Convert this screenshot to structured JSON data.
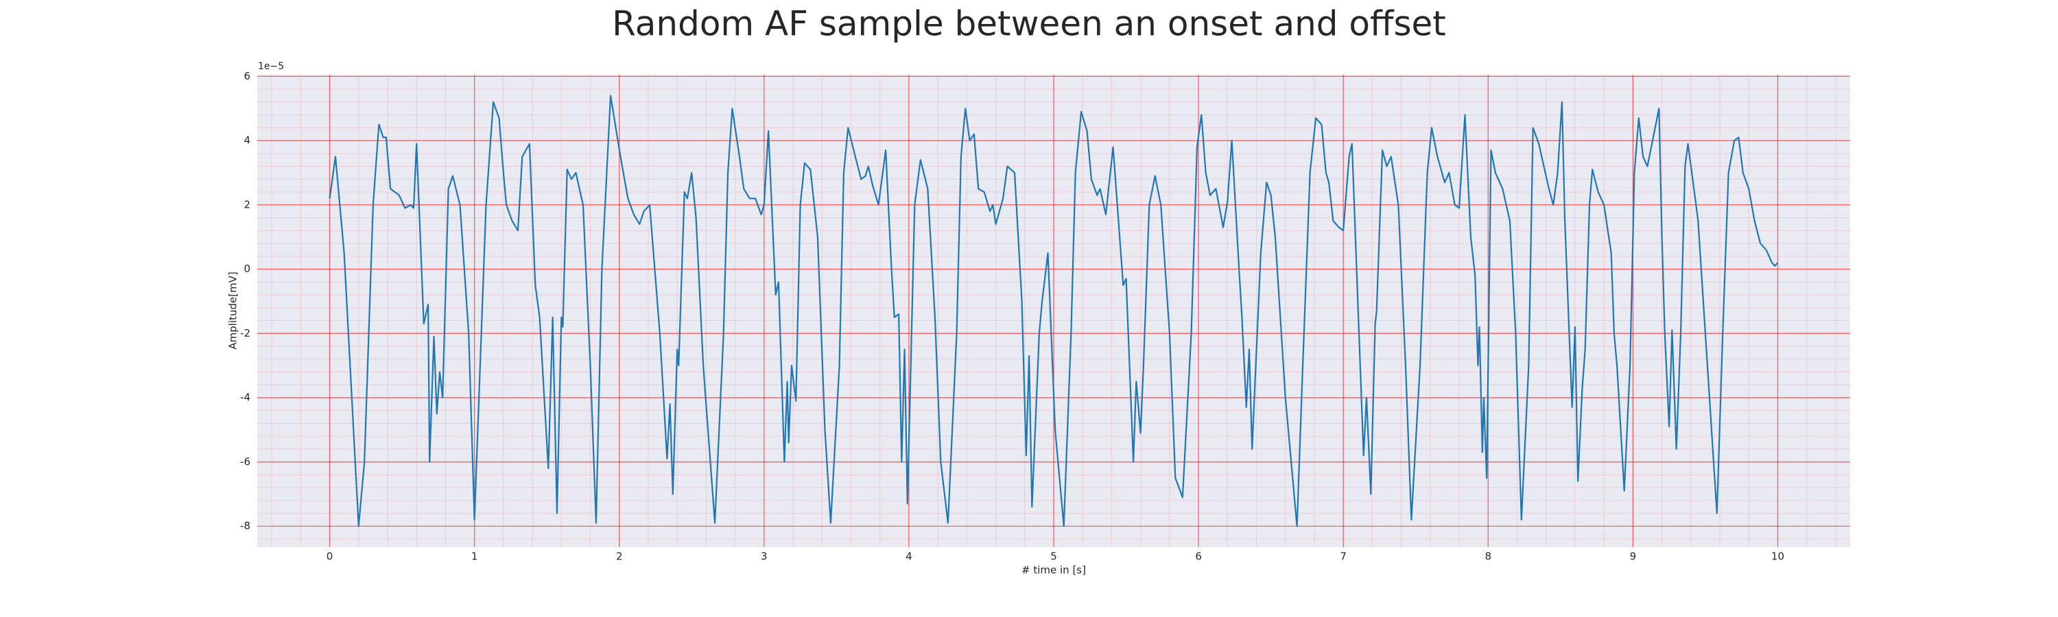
{
  "chart_data": {
    "type": "line",
    "title": "Random AF sample between an onset and offset",
    "x_label": "# time in [s]",
    "y_label": "Amplitude[mV]",
    "y_offset_label": "1e−5",
    "color": "#1f77b4",
    "background": "#eaeaf2",
    "grid": true,
    "grid_color": "#ff0000",
    "minor_grid": true,
    "xlim": [
      -0.5,
      10.5
    ],
    "ylim": [
      -8.65,
      6.05
    ],
    "xticks": [
      0,
      1,
      2,
      3,
      4,
      5,
      6,
      7,
      8,
      9,
      10
    ],
    "yticks": [
      -8,
      -6,
      -4,
      -2,
      0,
      2,
      4,
      6
    ],
    "x": [
      0,
      0.04,
      0.1,
      0.2,
      0.24,
      0.3,
      0.34,
      0.37,
      0.39,
      0.42,
      0.48,
      0.52,
      0.56,
      0.58,
      0.6,
      0.65,
      0.68,
      0.69,
      0.72,
      0.74,
      0.76,
      0.78,
      0.82,
      0.85,
      0.9,
      0.96,
      1.0,
      1.08,
      1.13,
      1.17,
      1.2,
      1.22,
      1.26,
      1.3,
      1.33,
      1.38,
      1.42,
      1.45,
      1.51,
      1.54,
      1.57,
      1.6,
      1.61,
      1.64,
      1.67,
      1.7,
      1.75,
      1.8,
      1.84,
      1.88,
      1.94,
      1.99,
      2.02,
      2.06,
      2.1,
      2.14,
      2.17,
      2.21,
      2.28,
      2.33,
      2.35,
      2.37,
      2.4,
      2.41,
      2.45,
      2.47,
      2.5,
      2.53,
      2.58,
      2.66,
      2.72,
      2.75,
      2.78,
      2.83,
      2.86,
      2.9,
      2.94,
      2.98,
      3.0,
      3.03,
      3.08,
      3.1,
      3.14,
      3.16,
      3.17,
      3.19,
      3.22,
      3.25,
      3.28,
      3.32,
      3.37,
      3.42,
      3.46,
      3.52,
      3.55,
      3.58,
      3.63,
      3.67,
      3.7,
      3.72,
      3.75,
      3.79,
      3.84,
      3.88,
      3.9,
      3.93,
      3.95,
      3.97,
      3.99,
      4.04,
      4.08,
      4.13,
      4.18,
      4.22,
      4.27,
      4.33,
      4.36,
      4.39,
      4.42,
      4.45,
      4.48,
      4.52,
      4.56,
      4.58,
      4.6,
      4.65,
      4.68,
      4.73,
      4.78,
      4.81,
      4.83,
      4.85,
      4.9,
      4.92,
      4.96,
      5.01,
      5.07,
      5.12,
      5.15,
      5.19,
      5.23,
      5.26,
      5.3,
      5.32,
      5.36,
      5.41,
      5.48,
      5.5,
      5.55,
      5.57,
      5.6,
      5.62,
      5.66,
      5.7,
      5.74,
      5.8,
      5.84,
      5.89,
      5.95,
      5.99,
      6.02,
      6.05,
      6.08,
      6.12,
      6.17,
      6.2,
      6.23,
      6.28,
      6.3,
      6.33,
      6.35,
      6.37,
      6.43,
      6.47,
      6.5,
      6.53,
      6.6,
      6.68,
      6.72,
      6.77,
      6.81,
      6.85,
      6.88,
      6.9,
      6.93,
      6.97,
      7.0,
      7.04,
      7.06,
      7.1,
      7.14,
      7.16,
      7.19,
      7.22,
      7.23,
      7.27,
      7.3,
      7.33,
      7.38,
      7.43,
      7.47,
      7.53,
      7.58,
      7.61,
      7.65,
      7.7,
      7.73,
      7.77,
      7.8,
      7.84,
      7.88,
      7.91,
      7.93,
      7.94,
      7.96,
      7.97,
      7.99,
      8.02,
      8.05,
      8.1,
      8.15,
      8.19,
      8.23,
      8.28,
      8.31,
      8.35,
      8.42,
      8.45,
      8.48,
      8.51,
      8.53,
      8.56,
      8.58,
      8.6,
      8.62,
      8.65,
      8.67,
      8.7,
      8.72,
      8.76,
      8.8,
      8.85,
      8.87,
      8.89,
      8.94,
      8.98,
      9.01,
      9.04,
      9.07,
      9.1,
      9.18,
      9.2,
      9.22,
      9.25,
      9.27,
      9.3,
      9.33,
      9.36,
      9.38,
      9.43,
      9.45,
      9.5,
      9.58,
      9.62,
      9.66,
      9.7,
      9.73,
      9.76,
      9.8,
      9.84,
      9.88,
      9.92,
      9.96,
      9.98,
      10.0
    ],
    "values": [
      2.2,
      3.5,
      0.5,
      -8,
      -6,
      2,
      4.5,
      4.1,
      4.1,
      2.5,
      2.3,
      1.9,
      2.0,
      1.9,
      3.9,
      -1.7,
      -1.1,
      -6,
      -2.1,
      -4.5,
      -3.2,
      -4,
      2.5,
      2.9,
      2.0,
      -2,
      -7.8,
      2,
      5.2,
      4.7,
      3.0,
      2,
      1.5,
      1.2,
      3.5,
      3.9,
      -0.5,
      -1.5,
      -6.2,
      -1.5,
      -7.6,
      -1.5,
      -1.8,
      3.1,
      2.8,
      3.0,
      2,
      -3,
      -7.9,
      0,
      5.4,
      4,
      3.2,
      2.2,
      1.7,
      1.4,
      1.8,
      2.0,
      -2,
      -5.9,
      -4.2,
      -7,
      -2.5,
      -3,
      2.4,
      2.2,
      3,
      1.6,
      -3,
      -7.9,
      -2,
      3,
      5,
      3.5,
      2.5,
      2.2,
      2.2,
      1.7,
      2,
      4.3,
      -0.8,
      -0.4,
      -6,
      -3.5,
      -5.4,
      -3.0,
      -4.1,
      2,
      3.3,
      3.1,
      1,
      -5,
      -7.9,
      -3,
      3,
      4.4,
      3.5,
      2.8,
      2.9,
      3.2,
      2.6,
      2,
      3.7,
      0,
      -1.5,
      -1.4,
      -6,
      -2.5,
      -7.3,
      2,
      3.4,
      2.5,
      -1.5,
      -6,
      -7.9,
      -2,
      3.5,
      5,
      4,
      4.2,
      2.5,
      2.4,
      1.8,
      2,
      1.4,
      2.2,
      3.2,
      3.0,
      -1,
      -5.8,
      -2.7,
      -7.4,
      -2,
      -1,
      0.5,
      -5,
      -8,
      -2,
      3,
      4.9,
      4.3,
      2.8,
      2.3,
      2.5,
      1.7,
      3.8,
      -0.5,
      -0.3,
      -6,
      -3.5,
      -5.1,
      -3,
      2,
      2.9,
      2,
      -2,
      -6.5,
      -7.1,
      -2,
      3.8,
      4.8,
      3.0,
      2.3,
      2.5,
      1.3,
      2.1,
      4,
      0,
      -1.5,
      -4.3,
      -2.5,
      -5.6,
      0.5,
      2.7,
      2.3,
      1,
      -4,
      -8,
      -3,
      3,
      4.7,
      4.5,
      3,
      2.7,
      1.5,
      1.3,
      1.2,
      3.5,
      3.9,
      -1,
      -5.8,
      -4,
      -7,
      -1.7,
      -1.3,
      3.7,
      3.2,
      3.5,
      2,
      -3,
      -7.8,
      -3,
      3,
      4.4,
      3.5,
      2.7,
      3,
      2,
      1.9,
      4.8,
      1,
      -0.2,
      -3,
      -1.8,
      -5.7,
      -4,
      -6.5,
      3.7,
      3,
      2.5,
      1.5,
      -2,
      -7.8,
      -3,
      4.4,
      3.9,
      2.5,
      2.0,
      3,
      5.2,
      1.5,
      -2,
      -4.3,
      -1.8,
      -6.6,
      -3.7,
      -2.5,
      2,
      3.1,
      2.4,
      2.0,
      0.5,
      -2,
      -3,
      -6.9,
      -3,
      3,
      4.7,
      3.5,
      3.2,
      5,
      1,
      -2,
      -4.9,
      -1.9,
      -5.6,
      -2,
      3.2,
      3.9,
      2.2,
      1.5,
      -2,
      -7.6,
      -2,
      3,
      4,
      4.1,
      3,
      2.5,
      1.5,
      0.8,
      0.6,
      0.2,
      0.1,
      0.2
    ]
  }
}
